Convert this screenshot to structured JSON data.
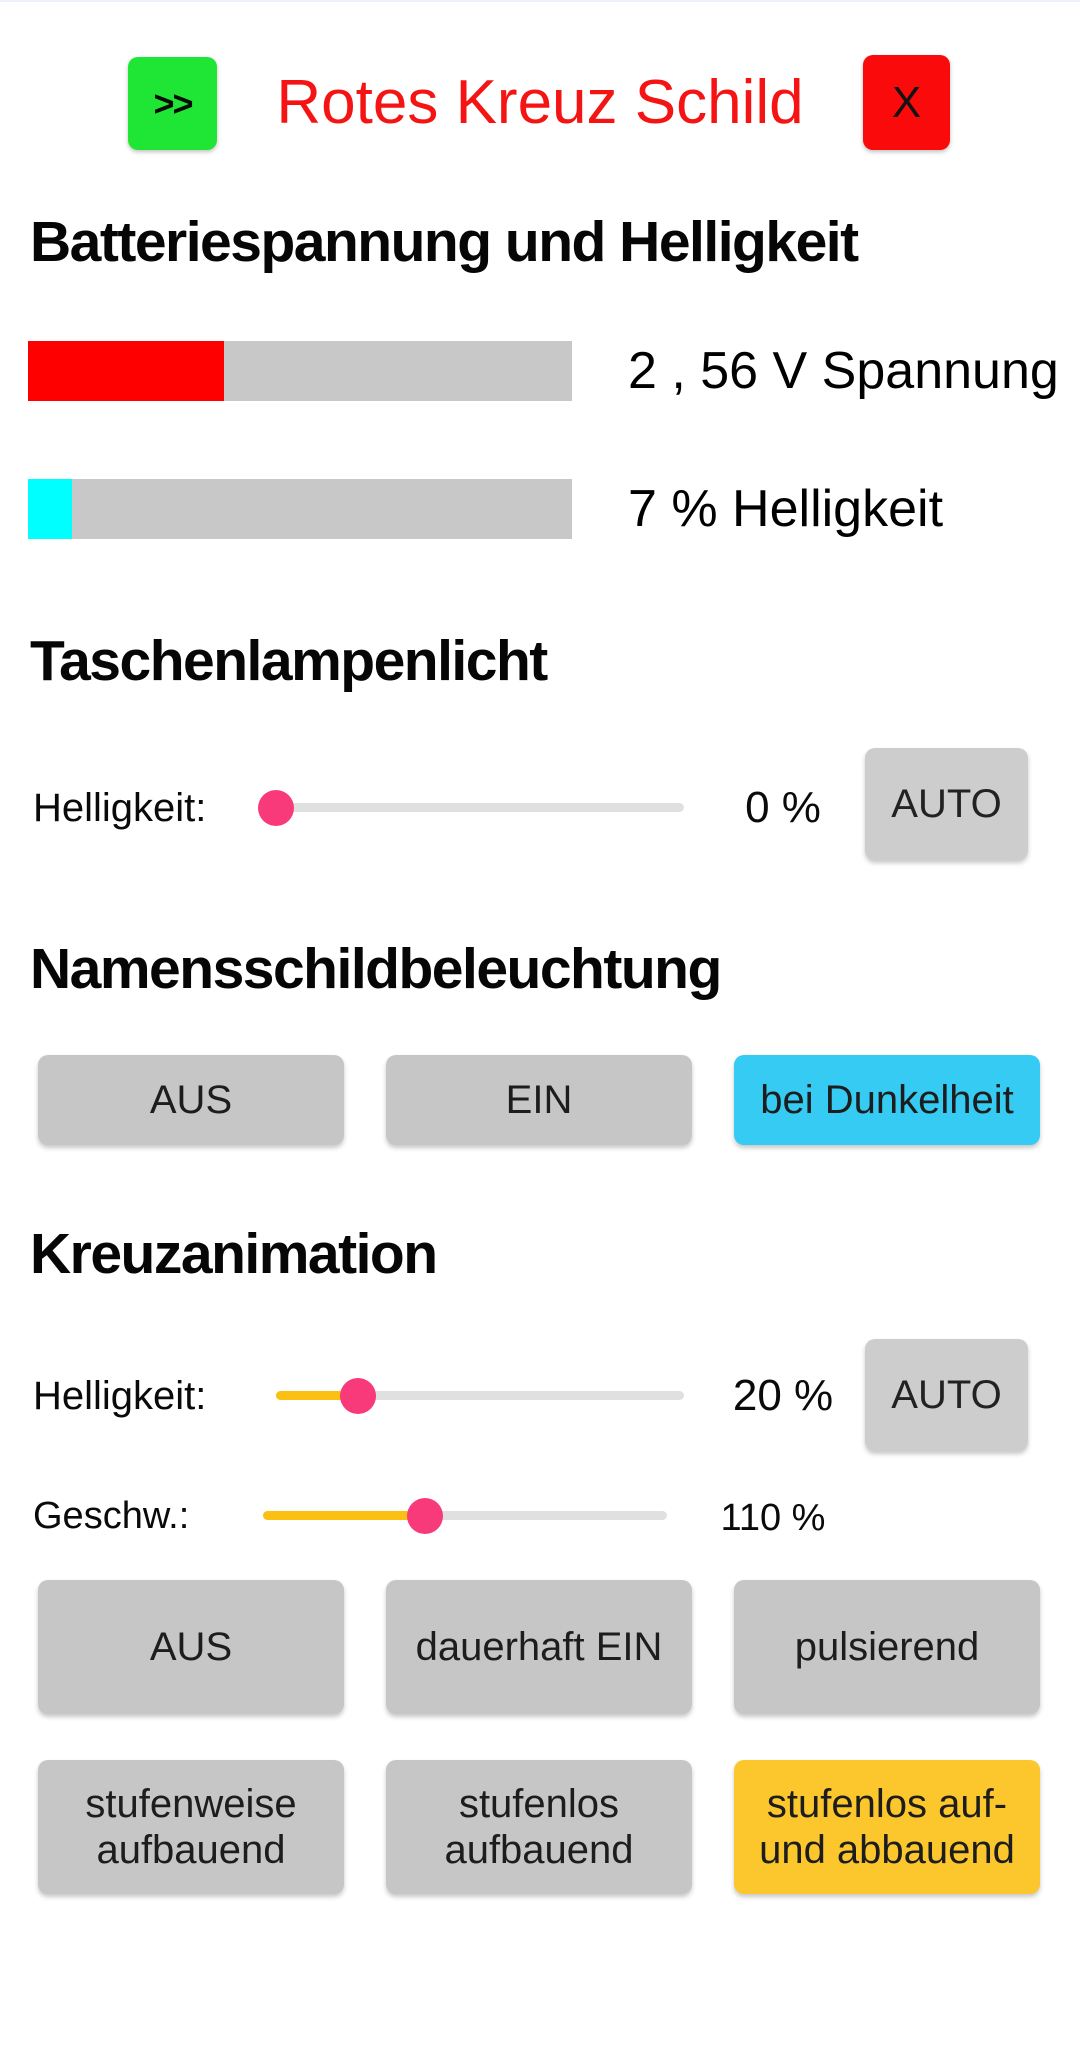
{
  "colors": {
    "accent_green": "#1fe634",
    "accent_red": "#fa0a0a",
    "title_red": "#f51414",
    "bar_red": "#ff0000",
    "bar_cyan": "#00ffff",
    "bar_track_gray": "#c8c8c8",
    "slider_track_gray": "#e0e0e0",
    "slider_fill_yellow": "#fcc013",
    "slider_thumb_pink": "#f8397a",
    "button_gray": "#c6c6c6",
    "button_active_cyan": "#35cbf2",
    "button_active_yellow": "#fcc72d"
  },
  "header": {
    "expand_button": ">>",
    "title": "Rotes Kreuz Schild",
    "close_button": "X"
  },
  "battery": {
    "heading": "Batteriespannung und Helligkeit",
    "voltage": {
      "label": "2 , 56 V Spannung",
      "fill_percent": 36
    },
    "brightness": {
      "label": "7 % Helligkeit",
      "fill_percent": 8
    }
  },
  "flashlight": {
    "heading": "Taschenlampenlicht",
    "slider": {
      "label": "Helligkeit:",
      "position_percent": 0,
      "value": "0 %",
      "auto": "AUTO"
    }
  },
  "nameplate": {
    "heading": "Namensschildbeleuchtung",
    "buttons": [
      {
        "label": "AUS",
        "active": false
      },
      {
        "label": "EIN",
        "active": false
      },
      {
        "label": "bei Dunkelheit",
        "active": true
      }
    ]
  },
  "cross": {
    "heading": "Kreuzanimation",
    "brightness_slider": {
      "label": "Helligkeit:",
      "position_percent": 20,
      "value": "20 %",
      "auto": "AUTO"
    },
    "speed_slider": {
      "label": "Geschw.:",
      "position_percent": 40,
      "value": "110 %"
    },
    "modes_row1": [
      {
        "label": "AUS",
        "active": false
      },
      {
        "label": "dauerhaft EIN",
        "active": false
      },
      {
        "label": "pulsierend",
        "active": false
      }
    ],
    "modes_row2": [
      {
        "label": "stufenweise aufbauend",
        "active": false
      },
      {
        "label": "stufenlos aufbauend",
        "active": false
      },
      {
        "label": "stufenlos auf- und abbauend",
        "active": true
      }
    ]
  }
}
